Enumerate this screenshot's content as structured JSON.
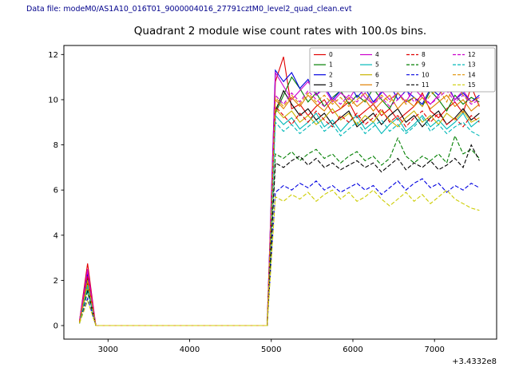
{
  "header": {
    "datafile": "Data file: modeM0/AS1A10_016T01_9000004016_27791cztM0_level2_quad_clean.evt"
  },
  "palette": {
    "background": "#ffffff",
    "axis": "#000000",
    "datafile_text": "#00008b",
    "legend_border": "#999999"
  },
  "chart_data": {
    "type": "line",
    "title": "Quadrant 2 module wise count rates with 100.0s bins.",
    "xlabel": "",
    "ylabel": "",
    "x_offset_label": "+3.4332e8",
    "xlim": [
      2459,
      7761
    ],
    "ylim": [
      -0.6,
      12.4
    ],
    "x_ticks": [
      3000,
      4000,
      5000,
      6000,
      7000
    ],
    "y_ticks": [
      0,
      2,
      4,
      6,
      8,
      10,
      12
    ],
    "grid": false,
    "legend_position": "upper right",
    "x_start": 2650,
    "x_step": 100,
    "series": [
      {
        "name": "0",
        "color": "#e00000",
        "dash": false,
        "values": [
          0.2,
          2.75,
          0,
          0,
          0,
          0,
          0,
          0,
          0,
          0,
          0,
          0,
          0,
          0,
          0,
          0,
          0,
          0,
          0,
          0,
          0,
          0,
          0,
          0,
          10.8,
          11.9,
          9.6,
          9.8,
          9.3,
          9.7,
          10.0,
          9.4,
          9.6,
          9.9,
          9.2,
          9.5,
          9.8,
          9.3,
          9.6,
          9.1,
          9.4,
          9.7,
          10.3,
          9.5,
          9.2,
          9.6,
          9.9,
          9.4,
          10.6,
          9.7
        ]
      },
      {
        "name": "1",
        "color": "#007f00",
        "dash": false,
        "values": [
          0.15,
          2.1,
          0,
          0,
          0,
          0,
          0,
          0,
          0,
          0,
          0,
          0,
          0,
          0,
          0,
          0,
          0,
          0,
          0,
          0,
          0,
          0,
          0,
          0,
          9.4,
          10.2,
          11.0,
          10.5,
          9.9,
          10.3,
          9.7,
          10.1,
          10.4,
          9.8,
          10.2,
          9.9,
          10.5,
          10.0,
          9.6,
          10.3,
          9.9,
          10.1,
          9.7,
          10.4,
          10.0,
          9.5,
          10.2,
          9.8,
          10.1,
          9.9
        ]
      },
      {
        "name": "2",
        "color": "#0000e0",
        "dash": false,
        "values": [
          0.2,
          2.3,
          0,
          0,
          0,
          0,
          0,
          0,
          0,
          0,
          0,
          0,
          0,
          0,
          0,
          0,
          0,
          0,
          0,
          0,
          0,
          0,
          0,
          0,
          11.3,
          10.8,
          11.2,
          10.5,
          10.9,
          10.2,
          10.6,
          10.0,
          10.4,
          10.8,
          10.1,
          10.5,
          9.9,
          10.3,
          10.7,
          10.0,
          10.4,
          10.1,
          9.8,
          10.5,
          10.2,
          10.7,
          10.0,
          10.3,
          9.9,
          10.2
        ]
      },
      {
        "name": "3",
        "color": "#000000",
        "dash": false,
        "values": [
          0.1,
          1.9,
          0,
          0,
          0,
          0,
          0,
          0,
          0,
          0,
          0,
          0,
          0,
          0,
          0,
          0,
          0,
          0,
          0,
          0,
          0,
          0,
          0,
          0,
          9.5,
          10.4,
          9.8,
          9.3,
          9.6,
          9.1,
          9.4,
          8.9,
          9.2,
          9.5,
          8.8,
          9.1,
          9.4,
          8.9,
          9.3,
          9.6,
          9.0,
          9.3,
          8.8,
          9.2,
          9.5,
          8.9,
          9.2,
          9.6,
          9.1,
          9.4
        ]
      },
      {
        "name": "4",
        "color": "#cc00cc",
        "dash": false,
        "values": [
          0.2,
          2.5,
          0,
          0,
          0,
          0,
          0,
          0,
          0,
          0,
          0,
          0,
          0,
          0,
          0,
          0,
          0,
          0,
          0,
          0,
          0,
          0,
          0,
          0,
          11.2,
          10.6,
          10.0,
          10.4,
          10.8,
          10.2,
          10.5,
          9.9,
          10.3,
          10.0,
          10.6,
          10.1,
          9.8,
          10.4,
          10.0,
          10.3,
          9.9,
          10.5,
          10.1,
          9.8,
          10.2,
          10.6,
          10.0,
          10.4,
          9.9,
          10.1
        ]
      },
      {
        "name": "5",
        "color": "#00b8b8",
        "dash": false,
        "values": [
          0.15,
          1.8,
          0,
          0,
          0,
          0,
          0,
          0,
          0,
          0,
          0,
          0,
          0,
          0,
          0,
          0,
          0,
          0,
          0,
          0,
          0,
          0,
          0,
          0,
          9.3,
          8.9,
          9.2,
          8.7,
          9.0,
          9.4,
          8.8,
          9.1,
          8.6,
          9.0,
          9.3,
          8.7,
          9.0,
          8.5,
          8.9,
          9.2,
          8.6,
          8.9,
          9.3,
          8.8,
          9.1,
          8.7,
          9.0,
          9.4,
          8.8,
          9.1
        ]
      },
      {
        "name": "6",
        "color": "#c8b400",
        "dash": false,
        "values": [
          0.1,
          1.7,
          0,
          0,
          0,
          0,
          0,
          0,
          0,
          0,
          0,
          0,
          0,
          0,
          0,
          0,
          0,
          0,
          0,
          0,
          0,
          0,
          0,
          0,
          9.6,
          9.2,
          9.5,
          9.0,
          9.3,
          8.9,
          9.2,
          9.6,
          9.1,
          9.4,
          8.9,
          9.3,
          9.0,
          9.5,
          9.1,
          8.8,
          9.2,
          9.5,
          9.0,
          9.3,
          8.9,
          9.4,
          9.1,
          9.5,
          9.0,
          9.2
        ]
      },
      {
        "name": "7",
        "color": "#e08000",
        "dash": false,
        "values": [
          0.15,
          2.0,
          0,
          0,
          0,
          0,
          0,
          0,
          0,
          0,
          0,
          0,
          0,
          0,
          0,
          0,
          0,
          0,
          0,
          0,
          0,
          0,
          0,
          0,
          10.0,
          9.6,
          10.1,
          9.7,
          10.2,
          9.8,
          9.5,
          10.0,
          9.6,
          10.1,
          9.7,
          10.0,
          9.5,
          9.9,
          10.2,
          9.6,
          10.0,
          9.7,
          10.1,
          9.6,
          9.9,
          10.2,
          9.7,
          10.0,
          9.5,
          9.8
        ]
      },
      {
        "name": "8",
        "color": "#e00000",
        "dash": true,
        "values": [
          0.15,
          2.2,
          0,
          0,
          0,
          0,
          0,
          0,
          0,
          0,
          0,
          0,
          0,
          0,
          0,
          0,
          0,
          0,
          0,
          0,
          0,
          0,
          0,
          0,
          9.7,
          9.3,
          8.9,
          9.4,
          9.0,
          9.5,
          9.1,
          8.8,
          9.3,
          9.0,
          9.4,
          8.9,
          9.2,
          9.6,
          9.0,
          9.3,
          8.8,
          9.2,
          9.5,
          9.0,
          9.4,
          8.9,
          9.2,
          8.8,
          9.3,
          9.0
        ]
      },
      {
        "name": "9",
        "color": "#007f00",
        "dash": true,
        "values": [
          0.1,
          1.5,
          0,
          0,
          0,
          0,
          0,
          0,
          0,
          0,
          0,
          0,
          0,
          0,
          0,
          0,
          0,
          0,
          0,
          0,
          0,
          0,
          0,
          0,
          7.6,
          7.4,
          7.7,
          7.3,
          7.6,
          7.8,
          7.4,
          7.6,
          7.2,
          7.5,
          7.7,
          7.3,
          7.5,
          7.1,
          7.4,
          8.3,
          7.5,
          7.2,
          7.5,
          7.3,
          7.6,
          7.2,
          8.4,
          7.6,
          7.8,
          7.4
        ]
      },
      {
        "name": "10",
        "color": "#0000e0",
        "dash": true,
        "values": [
          0.1,
          1.2,
          0,
          0,
          0,
          0,
          0,
          0,
          0,
          0,
          0,
          0,
          0,
          0,
          0,
          0,
          0,
          0,
          0,
          0,
          0,
          0,
          0,
          0,
          5.9,
          6.2,
          6.0,
          6.3,
          6.1,
          6.4,
          6.0,
          6.2,
          5.9,
          6.1,
          6.3,
          6.0,
          6.2,
          5.8,
          6.1,
          6.4,
          6.0,
          6.3,
          6.5,
          6.1,
          6.3,
          5.9,
          6.2,
          6.0,
          6.3,
          6.1
        ]
      },
      {
        "name": "11",
        "color": "#000000",
        "dash": true,
        "values": [
          0.1,
          1.6,
          0,
          0,
          0,
          0,
          0,
          0,
          0,
          0,
          0,
          0,
          0,
          0,
          0,
          0,
          0,
          0,
          0,
          0,
          0,
          0,
          0,
          0,
          7.2,
          7.0,
          7.3,
          7.5,
          7.1,
          7.4,
          7.0,
          7.2,
          6.9,
          7.1,
          7.3,
          7.0,
          7.2,
          6.8,
          7.1,
          7.4,
          6.9,
          7.2,
          7.0,
          7.3,
          6.9,
          7.1,
          7.4,
          7.0,
          8.0,
          7.3
        ]
      },
      {
        "name": "12",
        "color": "#cc00cc",
        "dash": true,
        "values": [
          0.2,
          2.4,
          0,
          0,
          0,
          0,
          0,
          0,
          0,
          0,
          0,
          0,
          0,
          0,
          0,
          0,
          0,
          0,
          0,
          0,
          0,
          0,
          0,
          0,
          10.2,
          9.8,
          10.3,
          9.9,
          10.4,
          10.0,
          9.7,
          10.1,
          9.8,
          10.2,
          9.9,
          10.3,
          9.8,
          10.1,
          9.7,
          10.0,
          10.4,
          9.9,
          10.2,
          9.8,
          10.1,
          10.4,
          9.9,
          10.2,
          9.8,
          10.0
        ]
      },
      {
        "name": "13",
        "color": "#00b8b8",
        "dash": true,
        "values": [
          0.1,
          1.7,
          0,
          0,
          0,
          0,
          0,
          0,
          0,
          0,
          0,
          0,
          0,
          0,
          0,
          0,
          0,
          0,
          0,
          0,
          0,
          0,
          0,
          0,
          9.0,
          8.6,
          8.9,
          8.5,
          8.8,
          9.1,
          8.6,
          8.9,
          8.4,
          8.7,
          9.0,
          8.5,
          8.8,
          9.1,
          8.6,
          8.9,
          8.5,
          8.8,
          9.2,
          8.6,
          8.9,
          8.5,
          8.8,
          9.0,
          8.6,
          8.4
        ]
      },
      {
        "name": "14",
        "color": "#e09000",
        "dash": true,
        "values": [
          0.15,
          2.0,
          0,
          0,
          0,
          0,
          0,
          0,
          0,
          0,
          0,
          0,
          0,
          0,
          0,
          0,
          0,
          0,
          0,
          0,
          0,
          0,
          0,
          0,
          10.1,
          9.7,
          10.2,
          9.8,
          10.3,
          9.9,
          10.2,
          9.8,
          10.1,
          9.7,
          10.0,
          10.3,
          9.8,
          10.2,
          9.9,
          10.3,
          9.8,
          10.1,
          9.7,
          10.2,
          10.5,
          9.9,
          10.8,
          10.2,
          9.9,
          10.1
        ]
      },
      {
        "name": "15",
        "color": "#cccc00",
        "dash": true,
        "values": [
          0.1,
          1.1,
          0,
          0,
          0,
          0,
          0,
          0,
          0,
          0,
          0,
          0,
          0,
          0,
          0,
          0,
          0,
          0,
          0,
          0,
          0,
          0,
          0,
          0,
          5.7,
          5.5,
          5.8,
          5.6,
          5.9,
          5.5,
          5.8,
          6.0,
          5.6,
          5.9,
          5.5,
          5.7,
          6.0,
          5.6,
          5.3,
          5.6,
          5.9,
          5.5,
          5.8,
          5.4,
          5.7,
          6.0,
          5.6,
          5.4,
          5.2,
          5.1
        ]
      }
    ]
  }
}
